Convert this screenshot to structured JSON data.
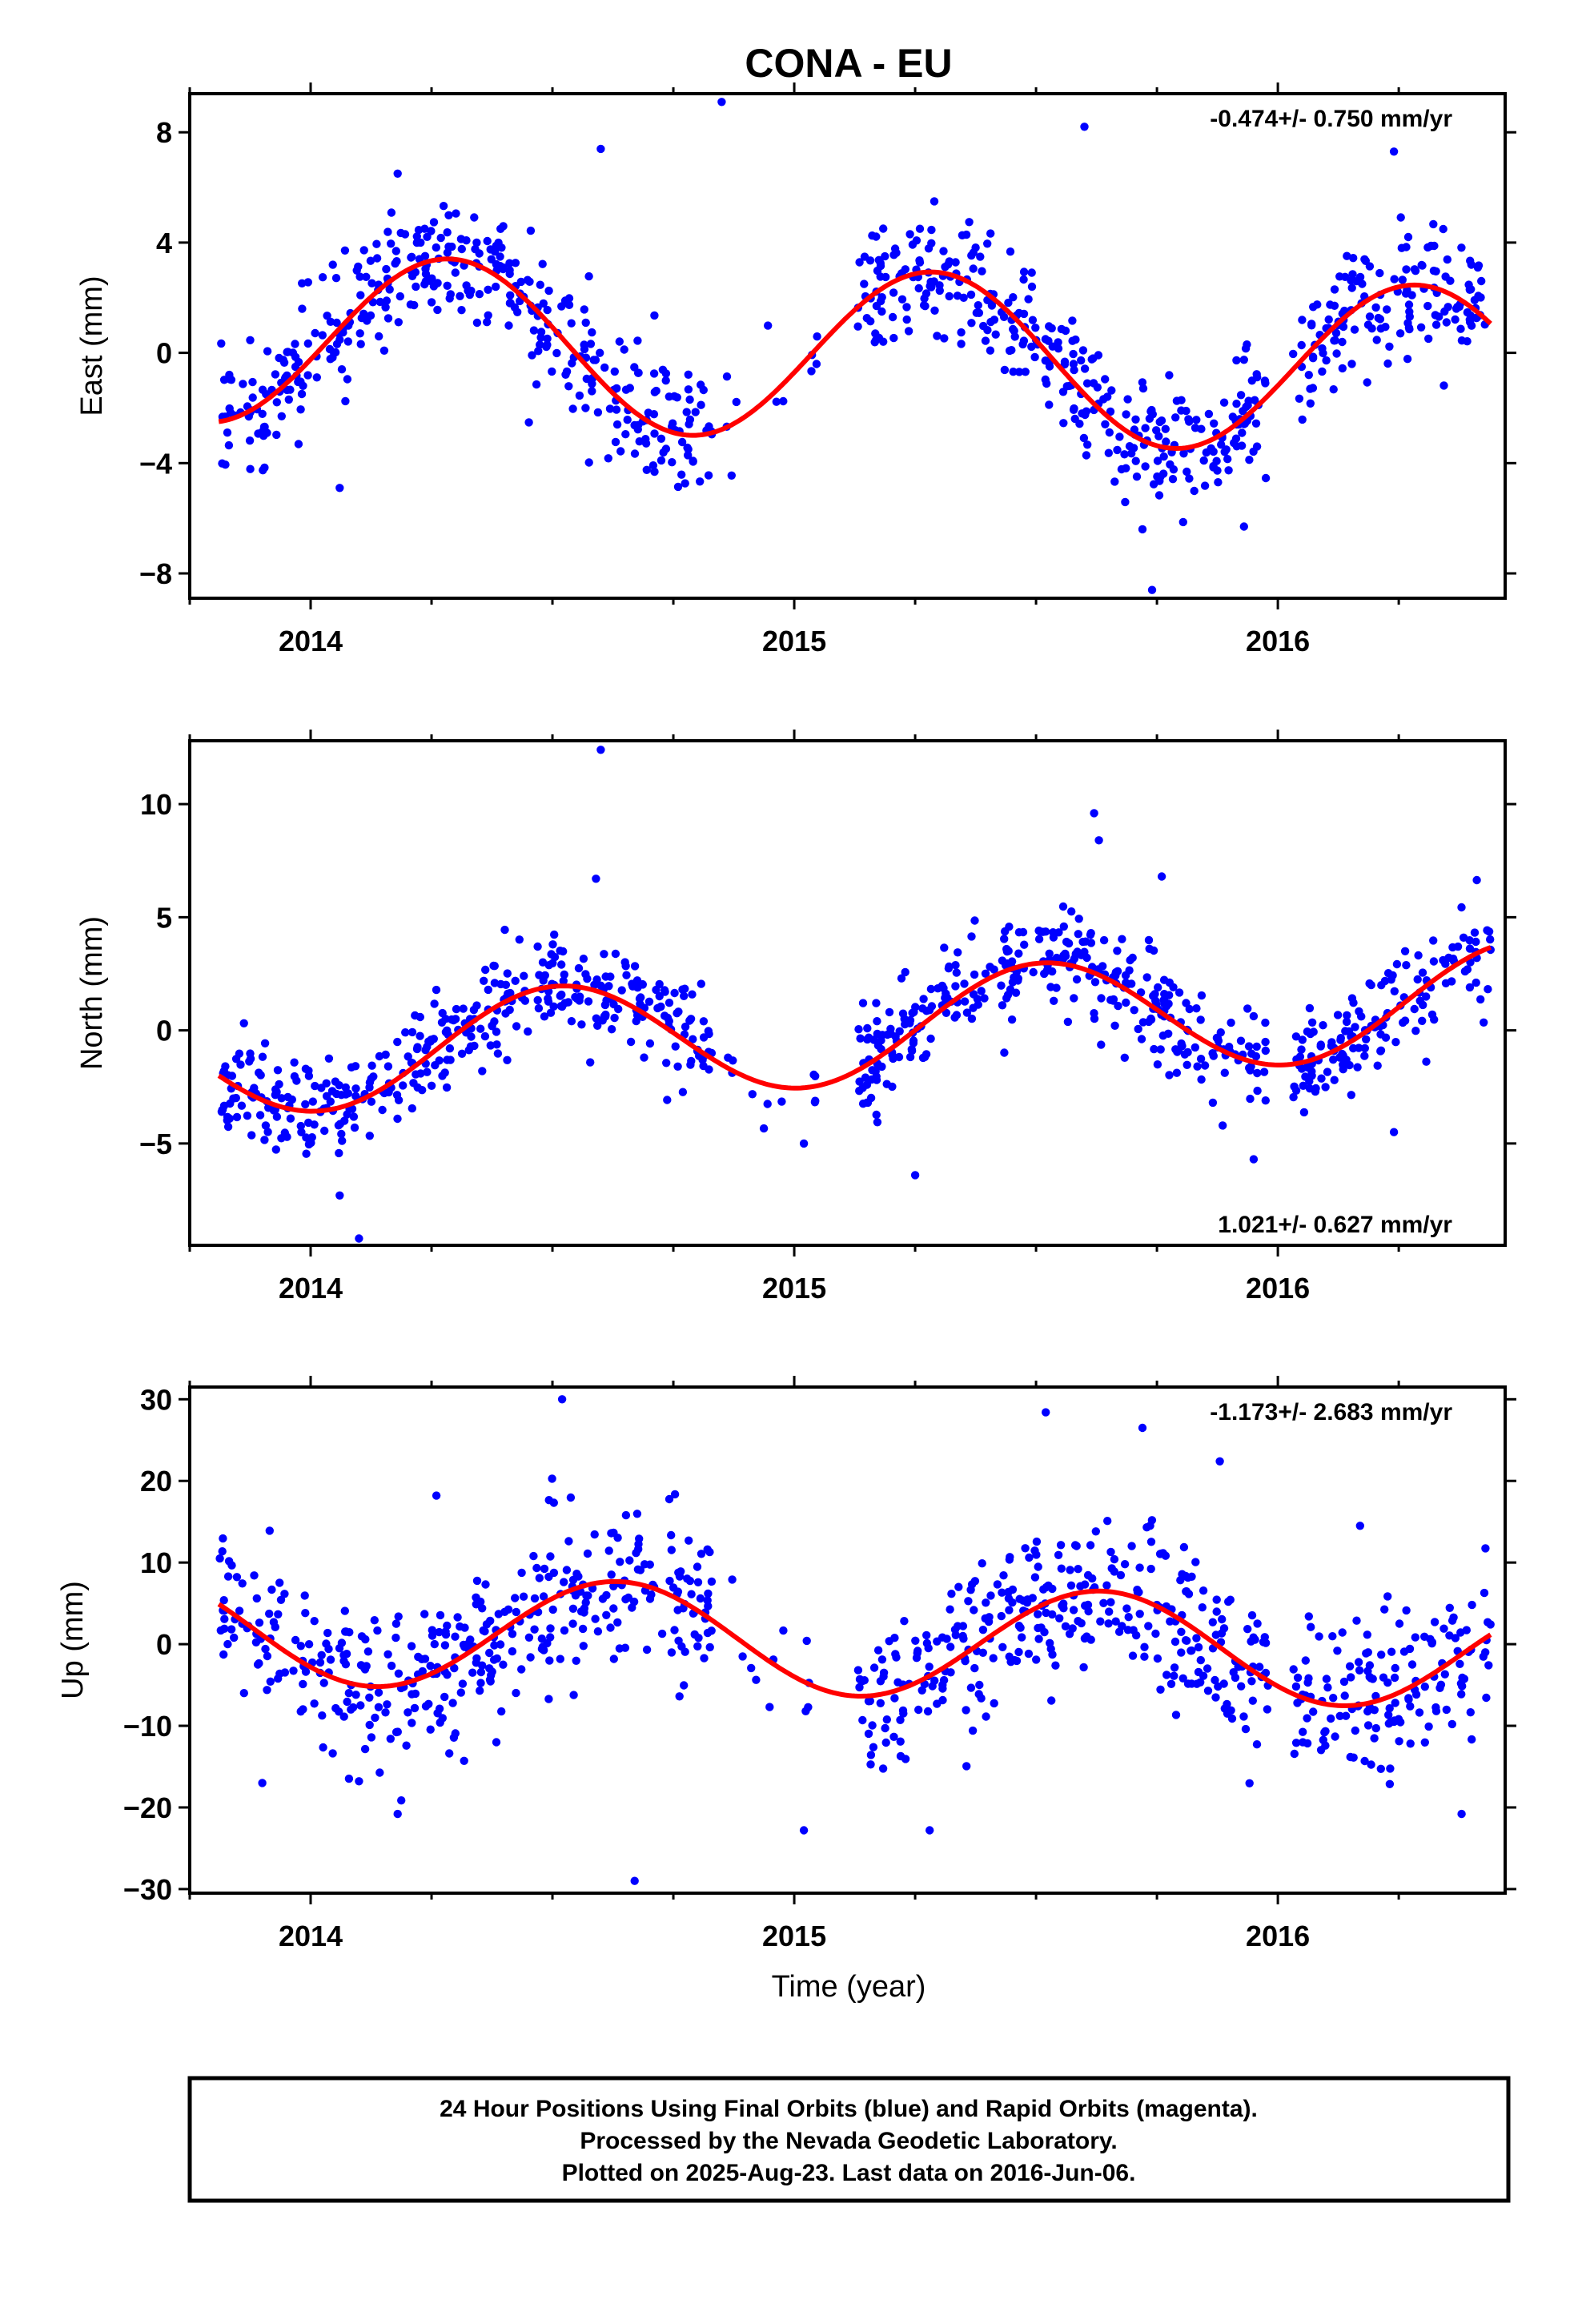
{
  "title": "CONA - EU",
  "xlabel": "Time (year)",
  "footer": {
    "line1": "24 Hour Positions Using Final Orbits (blue) and Rapid Orbits (magenta).",
    "line2": "Processed by the Nevada Geodetic Laboratory.",
    "line3": "Plotted on 2025-Aug-23. Last data on 2016-Jun-06."
  },
  "colors": {
    "points": "#0000ff",
    "fit": "#ff0000",
    "frame": "#000000"
  },
  "chart_data": [
    {
      "type": "scatter",
      "panel": "east",
      "ylabel": "East (mm)",
      "rate_label": "-0.474+/- 0.750 mm/yr",
      "rate_position": "top-right",
      "xlim": [
        2013.75,
        2016.47
      ],
      "ylim": [
        -8.9,
        9.4
      ],
      "xticks": [
        2014,
        2015,
        2016
      ],
      "xtick_labels": [
        "2014",
        "2015",
        "2016"
      ],
      "yticks": [
        -8,
        -4,
        0,
        4,
        8
      ],
      "ytick_labels": [
        "−8",
        "−4",
        "0",
        "4",
        "8"
      ],
      "grid": false,
      "fit": {
        "mean": -0.06,
        "rate": -0.474,
        "t0": 2015.1,
        "amp_cos": -0.7,
        "amp_sin": 3.0,
        "x_start": 2013.81,
        "x_end": 2016.44
      },
      "scatter_sd": 1.15,
      "seed": 11,
      "segments": [
        [
          2013.81,
          2014.83,
          380
        ],
        [
          2014.86,
          2014.98,
          7
        ],
        [
          2015.02,
          2015.05,
          4
        ],
        [
          2015.13,
          2015.98,
          330
        ],
        [
          2016.03,
          2016.44,
          150
        ]
      ],
      "outliers": [
        [
          2014.85,
          9.1
        ],
        [
          2014.6,
          7.4
        ],
        [
          2015.6,
          8.2
        ],
        [
          2016.24,
          7.3
        ],
        [
          2014.18,
          6.5
        ],
        [
          2015.74,
          -8.6
        ],
        [
          2015.72,
          -6.4
        ],
        [
          2015.93,
          -6.3
        ],
        [
          2014.06,
          -4.9
        ]
      ]
    },
    {
      "type": "scatter",
      "panel": "north",
      "ylabel": "North (mm)",
      "rate_label": "1.021+/- 0.627 mm/yr",
      "rate_position": "bottom-right",
      "xlim": [
        2013.75,
        2016.47
      ],
      "ylim": [
        -9.5,
        12.8
      ],
      "xticks": [
        2014,
        2015,
        2016
      ],
      "xtick_labels": [
        "2014",
        "2015",
        "2016"
      ],
      "yticks": [
        -5,
        0,
        5,
        10
      ],
      "ytick_labels": [
        "−5",
        "0",
        "5",
        "10"
      ],
      "grid": false,
      "fit": {
        "mean": 0.05,
        "rate": 1.021,
        "t0": 2015.1,
        "amp_cos": -2.5,
        "amp_sin": -0.2,
        "x_start": 2013.81,
        "x_end": 2016.44
      },
      "scatter_sd": 1.1,
      "seed": 23,
      "segments": [
        [
          2013.81,
          2014.83,
          380
        ],
        [
          2014.86,
          2014.98,
          7
        ],
        [
          2015.02,
          2015.05,
          4
        ],
        [
          2015.13,
          2015.98,
          330
        ],
        [
          2016.03,
          2016.44,
          150
        ]
      ],
      "outliers": [
        [
          2014.6,
          12.4
        ],
        [
          2014.59,
          6.7
        ],
        [
          2015.62,
          9.6
        ],
        [
          2015.63,
          8.4
        ],
        [
          2015.76,
          6.8
        ],
        [
          2014.1,
          -9.2
        ],
        [
          2014.06,
          -7.3
        ],
        [
          2015.25,
          -6.4
        ],
        [
          2015.95,
          -5.7
        ],
        [
          2016.24,
          -4.5
        ],
        [
          2015.02,
          -5.0
        ]
      ]
    },
    {
      "type": "scatter",
      "panel": "up",
      "ylabel": "Up (mm)",
      "rate_label": "-1.173+/- 2.683 mm/yr",
      "rate_position": "top-right",
      "xlim": [
        2013.75,
        2016.47
      ],
      "ylim": [
        -30.5,
        31.5
      ],
      "xticks": [
        2014,
        2015,
        2016
      ],
      "xtick_labels": [
        "2014",
        "2015",
        "2016"
      ],
      "yticks": [
        -30,
        -20,
        -10,
        0,
        10,
        20,
        30
      ],
      "ytick_labels": [
        "−30",
        "−20",
        "−10",
        "0",
        "10",
        "20",
        "30"
      ],
      "grid": false,
      "fit": {
        "mean": 0.4,
        "rate": -1.173,
        "t0": 2015.1,
        "amp_cos": -4.5,
        "amp_sin": -5.0,
        "x_start": 2013.81,
        "x_end": 2016.44
      },
      "scatter_sd": 4.8,
      "seed": 37,
      "segments": [
        [
          2013.81,
          2014.83,
          380
        ],
        [
          2014.86,
          2014.98,
          7
        ],
        [
          2015.02,
          2015.05,
          4
        ],
        [
          2015.13,
          2015.98,
          330
        ],
        [
          2016.03,
          2016.44,
          150
        ]
      ],
      "outliers": [
        [
          2014.52,
          30.0
        ],
        [
          2015.52,
          28.4
        ],
        [
          2015.72,
          26.5
        ],
        [
          2014.67,
          -29.0
        ],
        [
          2014.18,
          -20.8
        ],
        [
          2013.9,
          -17.0
        ],
        [
          2014.1,
          -16.8
        ],
        [
          2015.02,
          -22.8
        ],
        [
          2015.28,
          -22.8
        ],
        [
          2015.88,
          22.4
        ],
        [
          2014.26,
          18.2
        ],
        [
          2016.38,
          -20.8
        ],
        [
          2016.17,
          14.5
        ]
      ]
    }
  ]
}
